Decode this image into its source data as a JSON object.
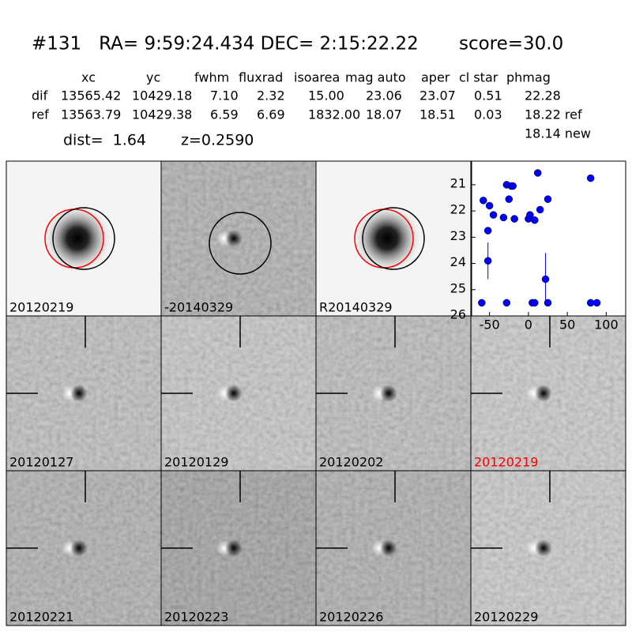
{
  "header": {
    "title": "#131   RA= 9:59:24.434 DEC= 2:15:22.22       score=30.0",
    "columns": [
      "xc",
      "yc",
      "fwhm",
      "fluxrad",
      "isoarea",
      "mag auto",
      "aper",
      "cl star",
      "phmag"
    ],
    "rows": [
      {
        "label": "dif",
        "cells": [
          "13565.42",
          "10429.18",
          "7.10",
          "2.32",
          "15.00",
          "23.06",
          "23.07",
          "0.51",
          "22.28"
        ]
      },
      {
        "label": "ref",
        "cells": [
          "13563.79",
          "10429.38",
          "6.59",
          "6.69",
          "1832.00",
          "18.07",
          "18.51",
          "0.03",
          "18.22 ref"
        ]
      }
    ],
    "new": "18.14 new",
    "dist": "dist=  1.64",
    "z": "z=0.2590"
  },
  "stamps": [
    {
      "label": "20120219"
    },
    {
      "label": "-20140329"
    },
    {
      "label": "R20140329"
    },
    {
      "label": "20120127"
    },
    {
      "label": "20120129"
    },
    {
      "label": "20120202"
    },
    {
      "label": "20120219",
      "color": "#ff0000"
    },
    {
      "label": "20120221"
    },
    {
      "label": "20120223"
    },
    {
      "label": "20120226"
    },
    {
      "label": "20120229"
    }
  ],
  "chart_data": {
    "type": "scatter",
    "color": "#0000ff",
    "x": [
      -60,
      -58,
      -50,
      -52,
      -52,
      -45,
      -32,
      -28,
      -25,
      -28,
      -22,
      -20,
      -18,
      0,
      2,
      8,
      5,
      8,
      12,
      15,
      22,
      25,
      25,
      80,
      80,
      88
    ],
    "values": [
      25.5,
      21.6,
      21.8,
      22.75,
      23.9,
      22.15,
      22.25,
      21.0,
      21.55,
      25.5,
      21.05,
      21.05,
      22.3,
      22.3,
      22.15,
      22.35,
      25.5,
      25.5,
      20.55,
      21.95,
      24.6,
      21.55,
      25.5,
      20.75,
      25.5,
      25.5
    ],
    "errors": [
      0,
      0.05,
      0.05,
      0.12,
      0.7,
      0.05,
      0.05,
      0.05,
      0.05,
      0,
      0.05,
      0.05,
      0.08,
      0.12,
      0.12,
      0.12,
      0,
      0,
      0.05,
      0.12,
      1.0,
      0.05,
      0,
      0.05,
      0,
      0
    ],
    "xlim": [
      -73,
      125
    ],
    "ylim": [
      26,
      20.1
    ],
    "xticks": [
      -50,
      0,
      50,
      100
    ],
    "yticks": [
      21,
      22,
      23,
      24,
      25,
      26
    ]
  }
}
